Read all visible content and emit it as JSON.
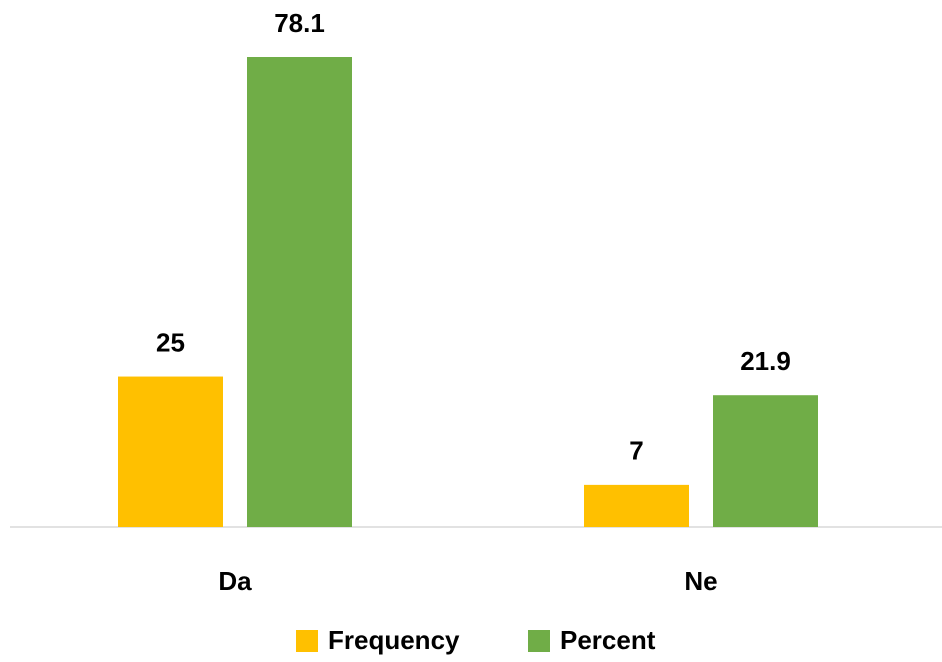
{
  "chart_data": {
    "type": "bar",
    "categories": [
      "Da",
      "Ne"
    ],
    "series": [
      {
        "name": "Frequency",
        "color": "#FFC000",
        "values": [
          25,
          7
        ]
      },
      {
        "name": "Percent",
        "color": "#70AD47",
        "values": [
          78.1,
          21.9
        ]
      }
    ],
    "legend": "bottom"
  }
}
